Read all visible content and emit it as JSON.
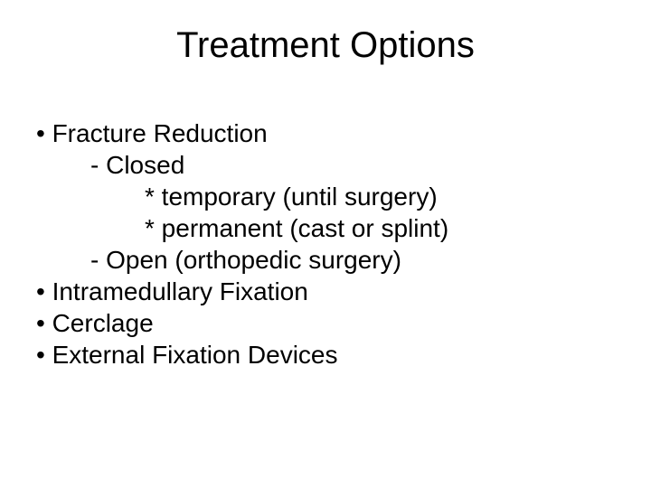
{
  "title": "Treatment Options",
  "lines": {
    "l1": "• Fracture Reduction",
    "l2": "- Closed",
    "l3": "* temporary (until surgery)",
    "l4": "* permanent (cast or splint)",
    "l5": "- Open (orthopedic surgery)",
    "l6": "• Intramedullary Fixation",
    "l7": "• Cerclage",
    "l8": "• External Fixation Devices"
  },
  "colors": {
    "background": "#ffffff",
    "text": "#000000"
  },
  "typography": {
    "title_fontsize": 40,
    "body_fontsize": 28,
    "font_family": "Verdana"
  }
}
